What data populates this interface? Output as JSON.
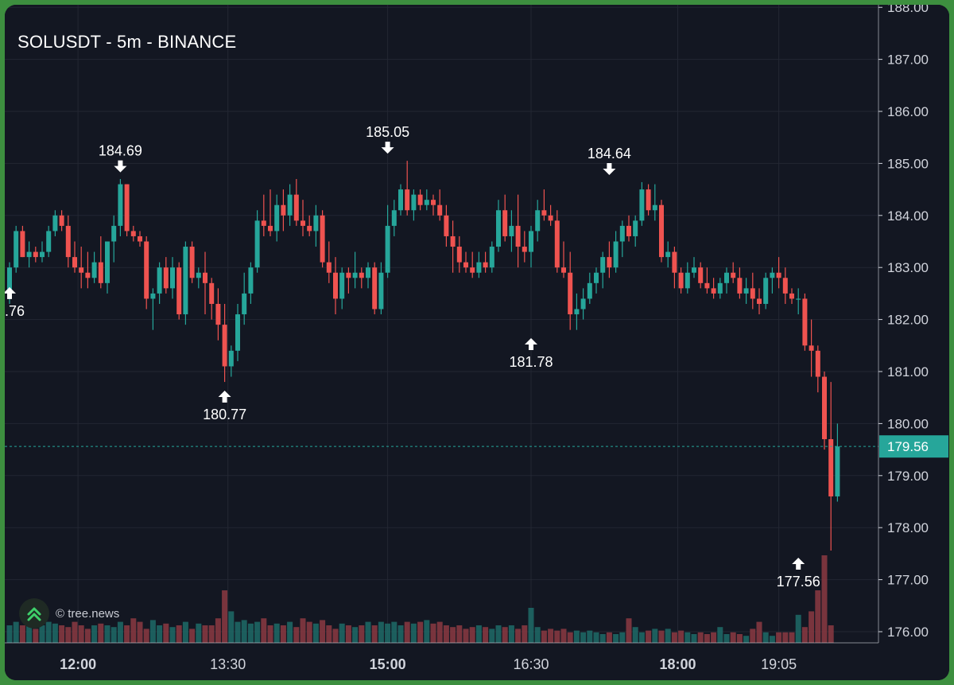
{
  "chart_title": "SOLUSDT - 5m - BINANCE",
  "watermark": {
    "text": "© tree.news",
    "icon": "tree-news-logo-icon"
  },
  "colors": {
    "up": "#26a69a",
    "down": "#ef5350",
    "up_volume": "#1f6b67",
    "down_volume": "#8c3a42",
    "background": "#131722",
    "grid": "#232733",
    "axis_text": "#d1d4dc",
    "price_line": "#26a69a",
    "frame": "#3d8f3f"
  },
  "chart_data": {
    "type": "candlestick",
    "title": "SOLUSDT - 5m - BINANCE",
    "symbol": "SOLUSDT",
    "interval": "5m",
    "exchange": "BINANCE",
    "y_ticks": [
      "176.00",
      "177.00",
      "178.00",
      "179.00",
      "180.00",
      "181.00",
      "182.00",
      "183.00",
      "184.00",
      "185.00",
      "186.00",
      "187.00",
      "188.00"
    ],
    "x_ticks": [
      {
        "label": "12:00",
        "bold": true,
        "index": 10.5
      },
      {
        "label": "13:30",
        "bold": false,
        "index": 33.5
      },
      {
        "label": "15:00",
        "bold": true,
        "index": 58
      },
      {
        "label": "16:30",
        "bold": false,
        "index": 80
      },
      {
        "label": "18:00",
        "bold": true,
        "index": 102.5
      },
      {
        "label": "19:05",
        "bold": false,
        "index": 118
      }
    ],
    "ylim": [
      175.8,
      188.1
    ],
    "current_price": {
      "label": "179.56",
      "value": 179.56
    },
    "annotations": [
      {
        "label": "184.69",
        "type": "high",
        "index": 17,
        "value": 184.69
      },
      {
        "label": "180.77",
        "type": "low",
        "index": 33,
        "value": 180.77
      },
      {
        "label": "185.05",
        "type": "high",
        "index": 58,
        "value": 185.05
      },
      {
        "label": "181.78",
        "type": "low",
        "index": 80,
        "value": 181.78
      },
      {
        "label": "184.64",
        "type": "high",
        "index": 92,
        "value": 184.64
      },
      {
        "label": "177.56",
        "type": "low",
        "index": 121,
        "value": 177.56
      },
      {
        "label": ".76",
        "type": "low",
        "index": 0,
        "value": 182.76
      }
    ],
    "ohlc": [
      [
        182.5,
        183.1,
        182.3,
        183.0
      ],
      [
        183.0,
        183.8,
        182.9,
        183.7
      ],
      [
        183.7,
        183.8,
        183.2,
        183.2
      ],
      [
        183.2,
        183.5,
        183.0,
        183.3
      ],
      [
        183.3,
        183.4,
        183.1,
        183.2
      ],
      [
        183.2,
        183.5,
        183.1,
        183.3
      ],
      [
        183.3,
        183.8,
        183.2,
        183.7
      ],
      [
        183.7,
        184.1,
        183.6,
        184.0
      ],
      [
        184.0,
        184.1,
        183.7,
        183.8
      ],
      [
        183.8,
        184.0,
        183.0,
        183.2
      ],
      [
        183.2,
        183.5,
        182.9,
        183.0
      ],
      [
        183.0,
        183.4,
        182.6,
        182.9
      ],
      [
        182.9,
        183.3,
        182.6,
        182.8
      ],
      [
        182.8,
        183.3,
        182.7,
        183.1
      ],
      [
        183.1,
        183.6,
        182.6,
        182.7
      ],
      [
        182.7,
        183.5,
        182.5,
        183.5
      ],
      [
        183.5,
        184.0,
        183.1,
        183.8
      ],
      [
        183.8,
        184.7,
        183.6,
        184.6
      ],
      [
        184.6,
        184.6,
        183.6,
        183.7
      ],
      [
        183.7,
        183.8,
        183.5,
        183.6
      ],
      [
        183.6,
        183.7,
        183.4,
        183.5
      ],
      [
        183.5,
        183.6,
        182.2,
        182.4
      ],
      [
        182.4,
        182.6,
        181.8,
        182.5
      ],
      [
        182.5,
        183.1,
        182.3,
        183.0
      ],
      [
        183.0,
        183.2,
        182.5,
        182.6
      ],
      [
        182.6,
        183.2,
        182.4,
        183.0
      ],
      [
        183.0,
        183.1,
        182.0,
        182.1
      ],
      [
        182.1,
        183.5,
        181.9,
        183.4
      ],
      [
        183.4,
        183.5,
        182.7,
        182.8
      ],
      [
        182.8,
        183.0,
        182.6,
        182.9
      ],
      [
        182.9,
        183.3,
        182.1,
        182.7
      ],
      [
        182.7,
        182.8,
        182.0,
        182.3
      ],
      [
        182.3,
        182.6,
        181.6,
        181.9
      ],
      [
        181.9,
        182.3,
        180.8,
        181.1
      ],
      [
        181.1,
        181.5,
        180.9,
        181.4
      ],
      [
        181.4,
        182.3,
        181.2,
        182.1
      ],
      [
        182.1,
        182.9,
        181.9,
        182.5
      ],
      [
        182.5,
        183.1,
        182.3,
        183.0
      ],
      [
        183.0,
        184.1,
        182.9,
        183.9
      ],
      [
        183.9,
        184.4,
        183.6,
        183.8
      ],
      [
        183.8,
        184.5,
        183.6,
        183.7
      ],
      [
        183.7,
        184.4,
        183.5,
        184.2
      ],
      [
        184.2,
        184.5,
        183.7,
        184.0
      ],
      [
        184.0,
        184.6,
        183.8,
        184.4
      ],
      [
        184.4,
        184.7,
        183.8,
        183.9
      ],
      [
        183.9,
        184.3,
        183.6,
        183.8
      ],
      [
        183.8,
        184.0,
        183.6,
        183.7
      ],
      [
        183.7,
        184.2,
        183.4,
        184.0
      ],
      [
        184.0,
        184.1,
        183.0,
        183.1
      ],
      [
        183.1,
        183.5,
        182.7,
        182.9
      ],
      [
        182.9,
        183.2,
        182.1,
        182.4
      ],
      [
        182.4,
        183.0,
        182.2,
        182.9
      ],
      [
        182.9,
        183.0,
        182.5,
        182.8
      ],
      [
        182.8,
        183.3,
        182.6,
        182.9
      ],
      [
        182.9,
        183.0,
        182.6,
        182.8
      ],
      [
        182.8,
        183.1,
        182.6,
        183.0
      ],
      [
        183.0,
        183.1,
        182.1,
        182.2
      ],
      [
        182.2,
        183.1,
        182.1,
        182.9
      ],
      [
        182.9,
        184.2,
        182.8,
        183.8
      ],
      [
        183.8,
        184.3,
        183.6,
        184.1
      ],
      [
        184.1,
        184.6,
        184.0,
        184.5
      ],
      [
        184.5,
        185.05,
        184.0,
        184.1
      ],
      [
        184.1,
        184.5,
        183.9,
        184.4
      ],
      [
        184.4,
        184.5,
        184.1,
        184.2
      ],
      [
        184.2,
        184.5,
        184.1,
        184.3
      ],
      [
        184.3,
        184.4,
        184.0,
        184.2
      ],
      [
        184.2,
        184.5,
        183.9,
        184.0
      ],
      [
        184.0,
        184.2,
        183.4,
        183.6
      ],
      [
        183.6,
        183.9,
        182.9,
        183.4
      ],
      [
        183.4,
        183.6,
        182.9,
        183.1
      ],
      [
        183.1,
        183.3,
        182.9,
        183.0
      ],
      [
        183.0,
        183.3,
        182.8,
        182.9
      ],
      [
        182.9,
        183.3,
        182.8,
        183.1
      ],
      [
        183.1,
        183.3,
        182.9,
        183.0
      ],
      [
        183.0,
        183.5,
        182.9,
        183.4
      ],
      [
        183.4,
        184.3,
        183.3,
        184.1
      ],
      [
        184.1,
        184.4,
        183.5,
        183.6
      ],
      [
        183.6,
        184.1,
        183.3,
        183.8
      ],
      [
        183.8,
        184.4,
        183.0,
        183.4
      ],
      [
        183.4,
        183.7,
        183.1,
        183.3
      ],
      [
        183.3,
        183.8,
        183.0,
        183.7
      ],
      [
        183.7,
        184.3,
        183.5,
        184.1
      ],
      [
        184.1,
        184.5,
        183.9,
        184.0
      ],
      [
        184.0,
        184.2,
        183.8,
        183.9
      ],
      [
        183.9,
        184.1,
        182.9,
        183.0
      ],
      [
        183.0,
        183.5,
        182.8,
        182.9
      ],
      [
        182.9,
        183.3,
        181.8,
        182.1
      ],
      [
        182.1,
        182.5,
        181.8,
        182.2
      ],
      [
        182.2,
        182.6,
        182.0,
        182.4
      ],
      [
        182.4,
        182.9,
        182.3,
        182.7
      ],
      [
        182.7,
        183.0,
        182.5,
        182.9
      ],
      [
        182.9,
        183.3,
        182.6,
        183.2
      ],
      [
        183.2,
        183.5,
        182.8,
        183.0
      ],
      [
        183.0,
        183.7,
        182.9,
        183.5
      ],
      [
        183.5,
        183.9,
        183.2,
        183.8
      ],
      [
        183.8,
        184.0,
        183.5,
        183.6
      ],
      [
        183.6,
        184.0,
        183.4,
        183.9
      ],
      [
        183.9,
        184.64,
        183.8,
        184.5
      ],
      [
        184.5,
        184.6,
        184.0,
        184.1
      ],
      [
        184.1,
        184.6,
        183.9,
        184.2
      ],
      [
        184.2,
        184.3,
        183.1,
        183.2
      ],
      [
        183.2,
        183.5,
        183.0,
        183.3
      ],
      [
        183.3,
        183.4,
        182.6,
        182.9
      ],
      [
        182.9,
        183.0,
        182.5,
        182.6
      ],
      [
        182.6,
        183.1,
        182.5,
        182.9
      ],
      [
        182.9,
        183.2,
        182.8,
        183.0
      ],
      [
        183.0,
        183.1,
        182.6,
        182.7
      ],
      [
        182.7,
        183.0,
        182.5,
        182.6
      ],
      [
        182.6,
        182.8,
        182.4,
        182.5
      ],
      [
        182.5,
        182.8,
        182.4,
        182.7
      ],
      [
        182.7,
        183.0,
        182.5,
        182.9
      ],
      [
        182.9,
        183.1,
        182.7,
        182.8
      ],
      [
        182.8,
        183.0,
        182.4,
        182.5
      ],
      [
        182.5,
        182.8,
        182.3,
        182.6
      ],
      [
        182.6,
        182.9,
        182.2,
        182.4
      ],
      [
        182.4,
        182.6,
        182.1,
        182.3
      ],
      [
        182.3,
        182.9,
        182.2,
        182.8
      ],
      [
        182.8,
        183.0,
        182.5,
        182.9
      ],
      [
        182.9,
        183.2,
        182.6,
        182.8
      ],
      [
        182.8,
        183.0,
        182.3,
        182.5
      ],
      [
        182.5,
        182.6,
        182.3,
        182.4
      ],
      [
        182.4,
        182.6,
        182.1,
        182.4
      ],
      [
        182.4,
        182.5,
        181.4,
        181.5
      ],
      [
        181.5,
        182.0,
        180.9,
        181.4
      ],
      [
        181.4,
        181.5,
        180.6,
        180.9
      ],
      [
        180.9,
        181.0,
        179.5,
        179.7
      ],
      [
        179.7,
        180.8,
        177.56,
        178.6
      ],
      [
        178.6,
        180.0,
        178.5,
        179.56
      ]
    ],
    "volumes": [
      0.5,
      0.6,
      0.5,
      0.55,
      0.4,
      0.5,
      0.6,
      0.55,
      0.5,
      0.45,
      0.6,
      0.5,
      0.4,
      0.5,
      0.55,
      0.5,
      0.45,
      0.6,
      0.5,
      0.7,
      0.6,
      0.4,
      0.65,
      0.5,
      0.55,
      0.45,
      0.5,
      0.6,
      0.4,
      0.55,
      0.5,
      0.5,
      0.7,
      1.5,
      0.9,
      0.6,
      0.65,
      0.55,
      0.6,
      0.7,
      0.5,
      0.55,
      0.5,
      0.6,
      0.45,
      0.7,
      0.6,
      0.55,
      0.65,
      0.5,
      0.4,
      0.55,
      0.5,
      0.45,
      0.5,
      0.6,
      0.5,
      0.6,
      0.55,
      0.6,
      0.5,
      0.6,
      0.55,
      0.6,
      0.65,
      0.55,
      0.6,
      0.5,
      0.45,
      0.5,
      0.4,
      0.45,
      0.5,
      0.45,
      0.4,
      0.5,
      0.45,
      0.5,
      0.4,
      0.5,
      1.0,
      0.45,
      0.35,
      0.4,
      0.35,
      0.4,
      0.3,
      0.35,
      0.3,
      0.35,
      0.3,
      0.25,
      0.3,
      0.25,
      0.3,
      0.7,
      0.45,
      0.3,
      0.35,
      0.4,
      0.35,
      0.4,
      0.3,
      0.35,
      0.3,
      0.25,
      0.3,
      0.25,
      0.3,
      0.45,
      0.25,
      0.3,
      0.25,
      0.2,
      0.4,
      0.6,
      0.3,
      0.2,
      0.3,
      0.3,
      0.3,
      0.8,
      0.45,
      0.9,
      1.5,
      2.5,
      0.5
    ]
  }
}
